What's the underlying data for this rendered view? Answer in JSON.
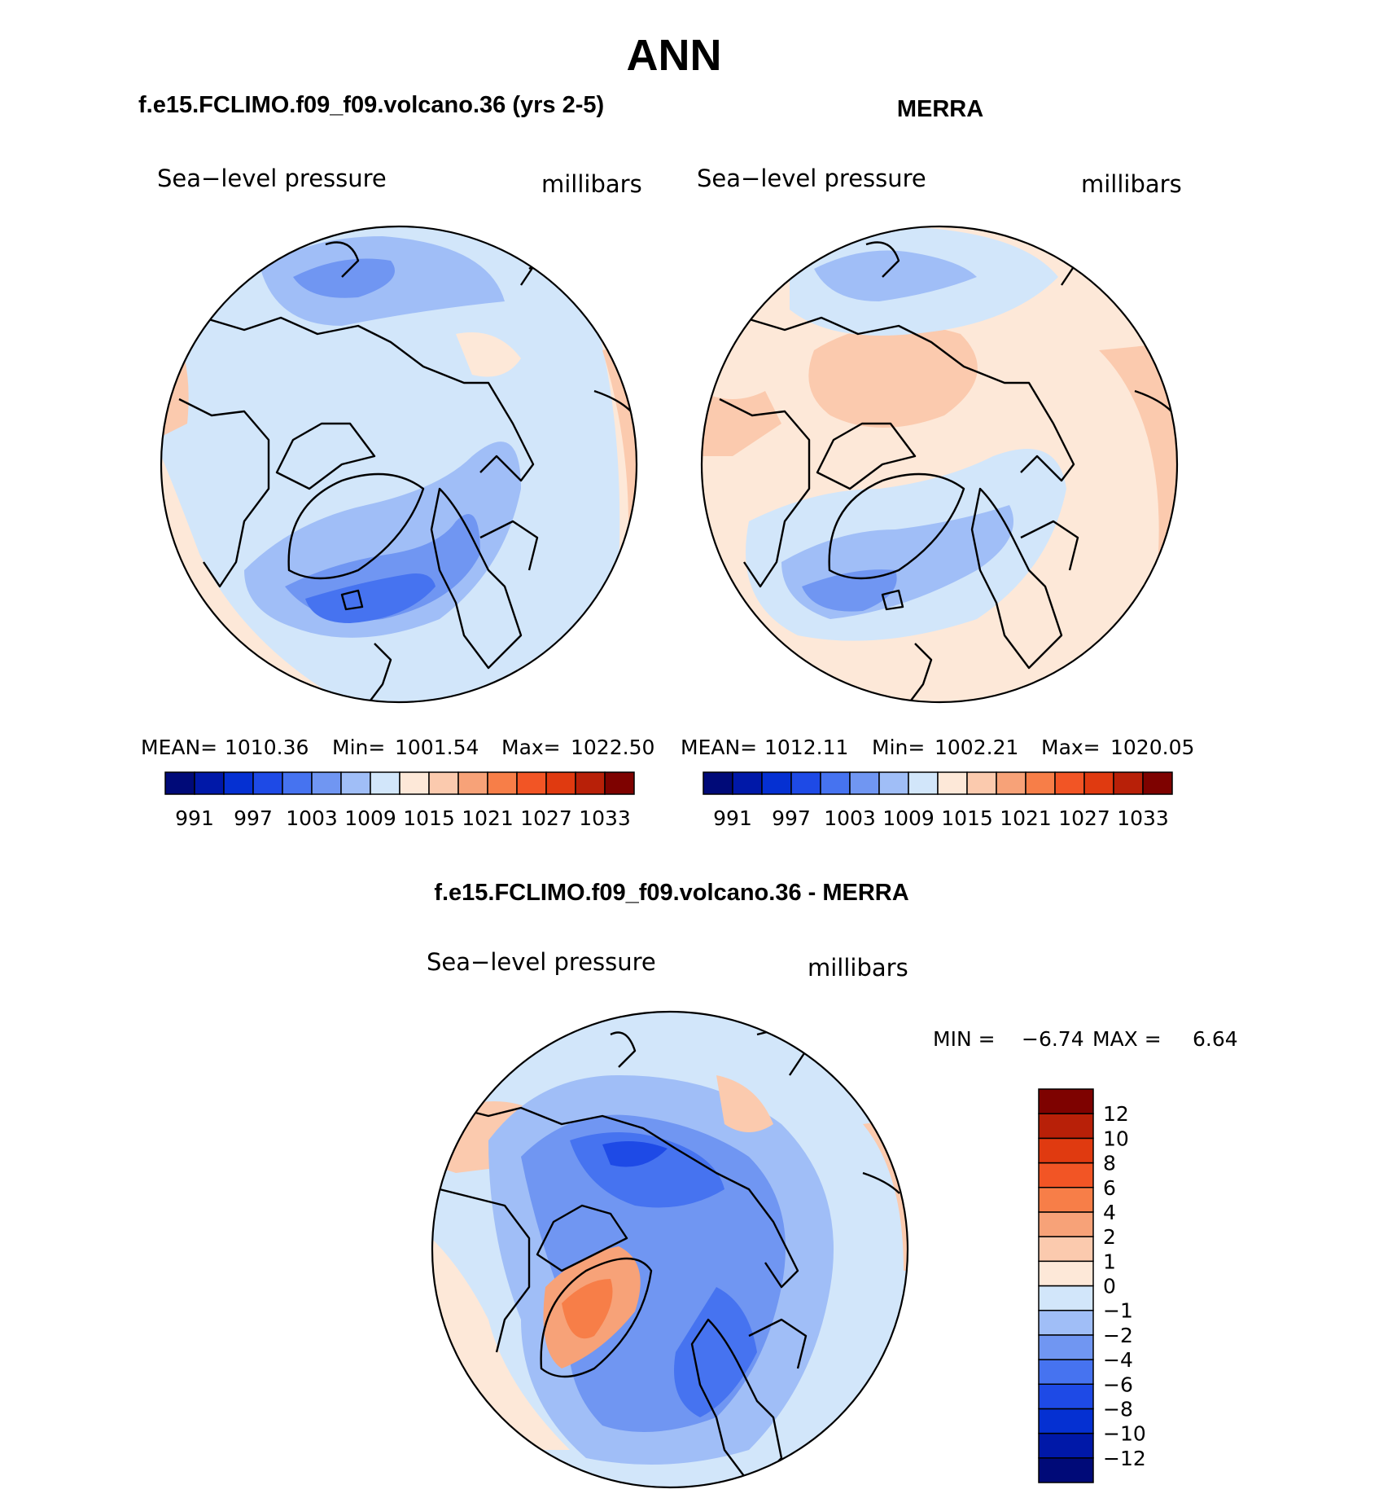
{
  "page_title": "ANN",
  "panels": {
    "model": {
      "case_title": "f.e15.FCLIMO.f09_f09.volcano.36 (yrs 2-5)",
      "variable": "Sea−level pressure",
      "units": "millibars",
      "stats": {
        "mean_label": "MEAN=",
        "mean": "1010.36",
        "min_label": "Min=",
        "min": "1001.54",
        "max_label": "Max=",
        "max": "1022.50"
      }
    },
    "obs": {
      "case_title": "MERRA",
      "variable": "Sea−level pressure",
      "units": "millibars",
      "stats": {
        "mean_label": "MEAN=",
        "mean": "1012.11",
        "min_label": "Min=",
        "min": "1002.21",
        "max_label": "Max=",
        "max": "1020.05"
      }
    },
    "diff": {
      "case_title": "f.e15.FCLIMO.f09_f09.volcano.36 - MERRA",
      "variable": "Sea−level pressure",
      "units": "millibars",
      "minmax": {
        "min_label": "MIN =",
        "min": "−6.74",
        "max_label": "MAX =",
        "max": "6.64"
      }
    }
  },
  "abs_colorbar": {
    "colors": [
      "#000a78",
      "#0018a8",
      "#0530d2",
      "#1e4ae6",
      "#4673f0",
      "#7096f2",
      "#a0bef7",
      "#d2e6fa",
      "#fde8d8",
      "#fbcaae",
      "#f7a278",
      "#f77e48",
      "#f25525",
      "#e03a10",
      "#b82008",
      "#7e0200"
    ],
    "tick_labels": [
      "991",
      "997",
      "1003",
      "1009",
      "1015",
      "1021",
      "1027",
      "1033"
    ]
  },
  "diff_colorbar": {
    "colors": [
      "#000a78",
      "#0018a8",
      "#0530d2",
      "#1e4ae6",
      "#4673f0",
      "#7096f2",
      "#a0bef7",
      "#d2e6fa",
      "#fde8d8",
      "#fbcaae",
      "#f7a278",
      "#f77e48",
      "#f25525",
      "#e03a10",
      "#b82008",
      "#7e0200"
    ],
    "tick_labels": [
      "−12",
      "−10",
      "−8",
      "−6",
      "−4",
      "−2",
      "−1",
      "0",
      "1",
      "2",
      "4",
      "6",
      "8",
      "10",
      "12"
    ]
  }
}
